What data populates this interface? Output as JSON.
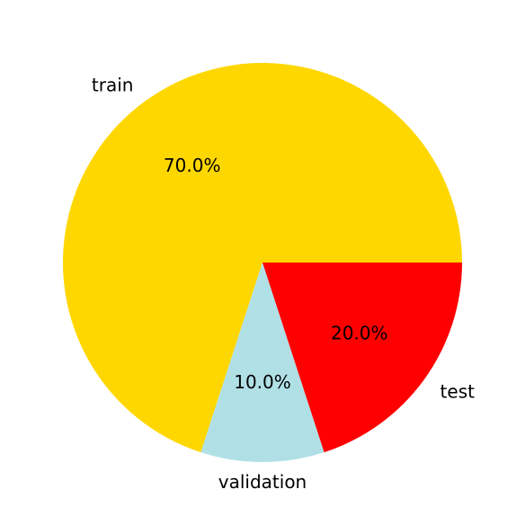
{
  "chart_data": {
    "type": "pie",
    "labels": [
      "train",
      "validation",
      "test"
    ],
    "values": [
      70,
      10,
      20
    ],
    "percent_labels": [
      "70.0%",
      "10.0%",
      "20.0%"
    ],
    "colors": [
      "#FFD700",
      "#B0E0E6",
      "#FF0000"
    ],
    "start_angle_deg": 0,
    "direction": "counterclockwise"
  }
}
